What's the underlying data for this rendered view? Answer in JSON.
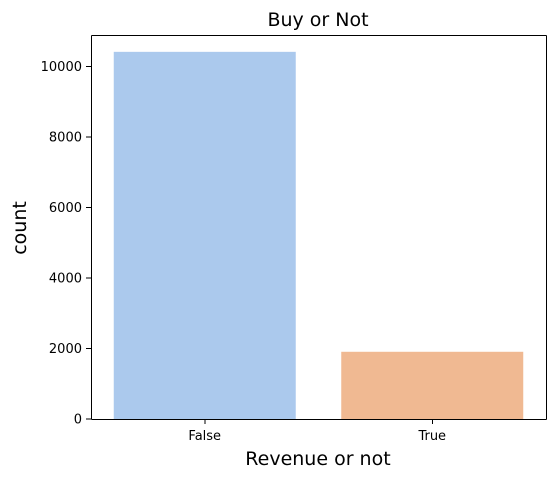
{
  "chart_data": {
    "type": "bar",
    "title": "Buy or Not",
    "xlabel": "Revenue or not",
    "ylabel": "count",
    "categories": [
      "False",
      "True"
    ],
    "values": [
      10422,
      1908
    ],
    "ylim": [
      0,
      10900
    ],
    "yticks": [
      0,
      2000,
      4000,
      6000,
      8000,
      10000
    ],
    "grid": false,
    "colors": [
      "#abc9ed",
      "#f0b992"
    ]
  }
}
